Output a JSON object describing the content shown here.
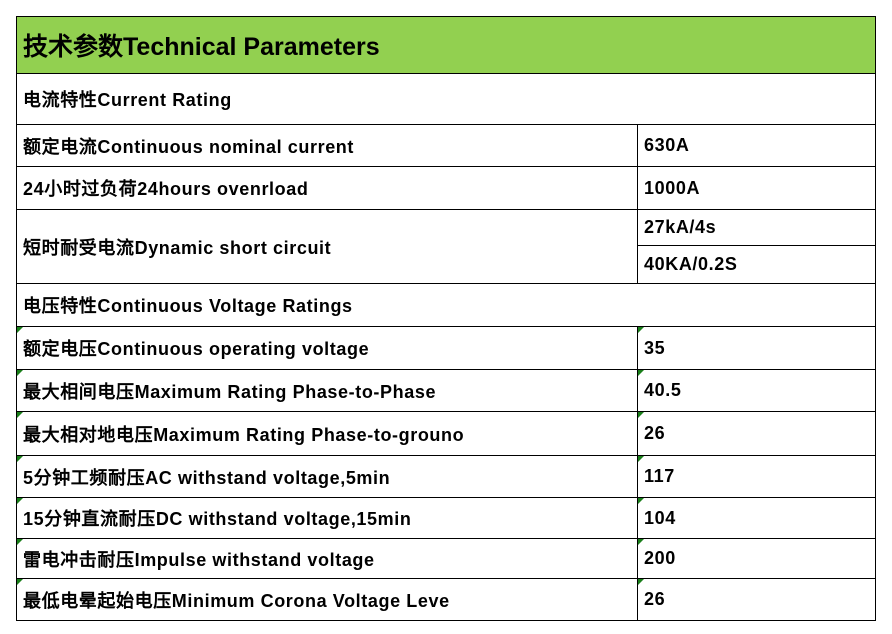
{
  "table": {
    "title": "技术参数Technical Parameters",
    "sections": [
      {
        "heading": "电流特性Current Rating",
        "rows": [
          {
            "label": "额定电流Continuous nominal current",
            "values": [
              "630A"
            ]
          },
          {
            "label": "24小时过负荷24hours ovenrload",
            "values": [
              "1000A"
            ]
          },
          {
            "label": "短时耐受电流Dynamic short circuit",
            "values": [
              "27kA/4s",
              "40KA/0.2S"
            ]
          }
        ]
      },
      {
        "heading": "电压特性Continuous Voltage Ratings",
        "rows": [
          {
            "label": "额定电压Continuous operating voltage",
            "values": [
              "35"
            ]
          },
          {
            "label": "最大相间电压Maximum Rating Phase-to-Phase",
            "values": [
              "40.5"
            ]
          },
          {
            "label": "最大相对地电压Maximum Rating Phase-to-grouno",
            "values": [
              "26"
            ]
          },
          {
            "label": "5分钟工频耐压AC withstand voltage,5min",
            "values": [
              "117"
            ]
          },
          {
            "label": "15分钟直流耐压DC withstand voltage,15min",
            "values": [
              "104"
            ]
          },
          {
            "label": "雷电冲击耐压Impulse withstand voltage",
            "values": [
              "200"
            ]
          },
          {
            "label": "最低电晕起始电压Minimum Corona Voltage Leve",
            "values": [
              "26"
            ]
          }
        ]
      }
    ]
  }
}
